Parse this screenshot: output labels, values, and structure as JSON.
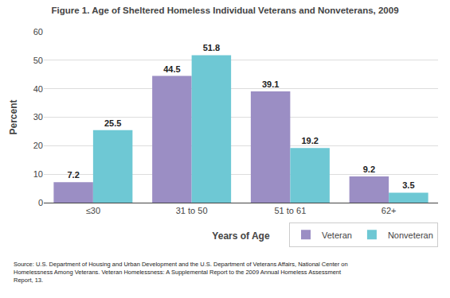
{
  "chart_data": {
    "type": "bar",
    "title": "Figure 1. Age of Sheltered Homeless Individual Veterans and Nonveterans, 2009",
    "categories": [
      "≤30",
      "31 to 50",
      "51 to 61",
      "62+"
    ],
    "series": [
      {
        "name": "Veteran",
        "color": "#9B8EC4",
        "values": [
          7.2,
          44.5,
          39.1,
          9.2
        ]
      },
      {
        "name": "Nonveteran",
        "color": "#6EC8D4",
        "values": [
          25.5,
          51.8,
          19.2,
          3.5
        ]
      }
    ],
    "xlabel": "Years of Age",
    "ylabel": "Percent",
    "ylim": [
      0,
      60
    ],
    "yticks": [
      0,
      10,
      20,
      30,
      40,
      50,
      60
    ],
    "grid": true,
    "data_labels": true,
    "legend": "lower right",
    "annotations": [
      "Source: U.S. Department of Housing and Urban Development and the U.S. Department of Veterans Affairs, National Center on\nHomelessness Among Veterans. Veteran Homelessness: A Supplemental Report to the 2009 Annual Homeless Assessment\nReport, 13."
    ]
  }
}
